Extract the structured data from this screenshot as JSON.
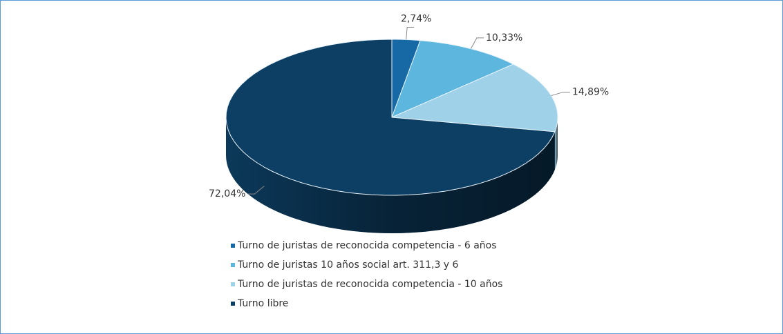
{
  "chart_data": {
    "type": "pie",
    "categories": [
      "Turno de juristas de reconocida competencia - 6 años",
      "Turno de juristas 10 años social art. 311,3 y 6",
      "Turno de juristas de reconocida competencia - 10 años",
      "Turno libre"
    ],
    "values": [
      2.74,
      10.33,
      14.89,
      72.04
    ],
    "value_labels": [
      "2,74%",
      "10,33%",
      "14,89%",
      "72,04%"
    ],
    "colors": [
      "#1769a6",
      "#5cb6de",
      "#9fd2e9",
      "#0d3f64"
    ]
  }
}
